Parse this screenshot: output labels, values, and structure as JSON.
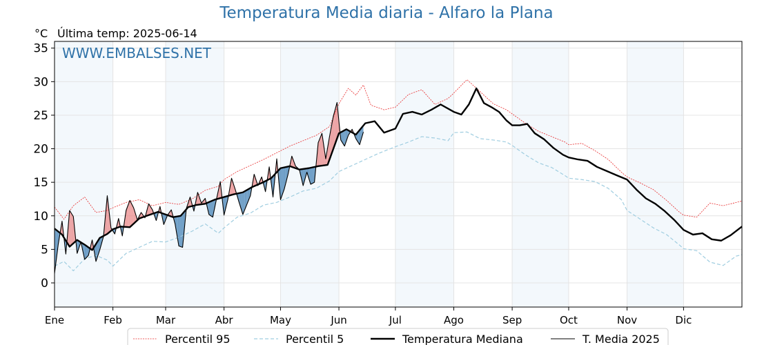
{
  "chart_data": {
    "type": "line",
    "title": "Temperatura Media diaria - Alfaro la Plana",
    "unit_label": "°C",
    "last_temp_label": "Última temp: 2025-06-14",
    "watermark": "WWW.EMBALSES.NET",
    "xlabel": "",
    "ylabel": "",
    "ylim": [
      -3.6,
      36.0
    ],
    "yticks": [
      0,
      5,
      10,
      15,
      20,
      25,
      30,
      35
    ],
    "xlim": [
      0,
      365
    ],
    "x_is_day_of_year": true,
    "months": [
      {
        "label": "Ene",
        "day": 0
      },
      {
        "label": "Feb",
        "day": 31
      },
      {
        "label": "Mar",
        "day": 59
      },
      {
        "label": "Abr",
        "day": 90
      },
      {
        "label": "May",
        "day": 120
      },
      {
        "label": "Jun",
        "day": 151
      },
      {
        "label": "Jul",
        "day": 181
      },
      {
        "label": "Ago",
        "day": 212
      },
      {
        "label": "Sep",
        "day": 243
      },
      {
        "label": "Oct",
        "day": 273
      },
      {
        "label": "Nov",
        "day": 304
      },
      {
        "label": "Dic",
        "day": 334
      }
    ],
    "grid": true,
    "legend_position": "bottom",
    "series": [
      {
        "name": "Percentil 95",
        "color": "#e8292a",
        "style": "dotted",
        "x": [
          0,
          5,
          10,
          16,
          22,
          28,
          31,
          38,
          45,
          52,
          59,
          66,
          73,
          80,
          87,
          90,
          97,
          104,
          111,
          118,
          125,
          132,
          139,
          146,
          151,
          156,
          160,
          164,
          168,
          175,
          181,
          188,
          195,
          202,
          209,
          212,
          219,
          226,
          233,
          240,
          243,
          250,
          257,
          264,
          271,
          273,
          280,
          287,
          294,
          301,
          304,
          311,
          318,
          325,
          332,
          334,
          341,
          348,
          355,
          362,
          365
        ],
        "values": [
          11.3,
          9.5,
          11.5,
          12.8,
          10.5,
          10.8,
          11.2,
          12.0,
          12.4,
          11.5,
          12.0,
          11.7,
          12.5,
          13.8,
          14.4,
          15.4,
          16.6,
          17.5,
          18.4,
          19.4,
          20.4,
          21.2,
          22.0,
          23.3,
          26.7,
          29.0,
          28.0,
          29.5,
          26.5,
          25.8,
          26.2,
          28.1,
          28.8,
          26.6,
          27.5,
          28.3,
          30.3,
          28.5,
          26.7,
          25.8,
          25.2,
          23.8,
          22.6,
          21.8,
          21.0,
          20.6,
          20.8,
          19.7,
          18.4,
          16.5,
          15.8,
          14.9,
          13.9,
          12.3,
          10.5,
          10.1,
          9.8,
          11.9,
          11.5,
          12.0,
          12.2
        ]
      },
      {
        "name": "Percentil 5",
        "color": "#9fcde0",
        "style": "dashed",
        "x": [
          0,
          5,
          10,
          16,
          22,
          28,
          31,
          38,
          45,
          52,
          59,
          66,
          73,
          80,
          87,
          90,
          97,
          104,
          111,
          118,
          125,
          132,
          139,
          146,
          151,
          158,
          165,
          172,
          181,
          188,
          195,
          202,
          209,
          212,
          219,
          226,
          233,
          240,
          243,
          250,
          257,
          264,
          271,
          273,
          280,
          287,
          294,
          301,
          304,
          311,
          318,
          325,
          332,
          334,
          341,
          348,
          355,
          362,
          365
        ],
        "values": [
          2.5,
          3.2,
          1.8,
          3.6,
          4.1,
          3.4,
          2.5,
          4.4,
          5.3,
          6.2,
          6.1,
          6.8,
          7.7,
          8.8,
          7.4,
          8.2,
          9.8,
          10.4,
          11.6,
          12.0,
          12.8,
          13.7,
          14.1,
          15.2,
          16.6,
          17.5,
          18.4,
          19.3,
          20.3,
          21.0,
          21.8,
          21.6,
          21.2,
          22.4,
          22.5,
          21.5,
          21.3,
          21.0,
          20.5,
          19.1,
          17.9,
          17.2,
          16.0,
          15.6,
          15.4,
          15.1,
          14.1,
          12.4,
          10.8,
          9.5,
          8.2,
          7.2,
          5.6,
          5.1,
          4.8,
          3.1,
          2.6,
          4.0,
          4.2
        ]
      },
      {
        "name": "Temperatura Mediana",
        "color": "#000000",
        "style": "solid-thick",
        "x": [
          0,
          4,
          8,
          12,
          16,
          20,
          24,
          28,
          31,
          35,
          40,
          45,
          50,
          55,
          59,
          63,
          67,
          71,
          75,
          80,
          85,
          90,
          95,
          100,
          105,
          110,
          115,
          120,
          125,
          130,
          135,
          140,
          145,
          151,
          155,
          160,
          165,
          170,
          175,
          181,
          185,
          190,
          195,
          200,
          205,
          212,
          216,
          220,
          224,
          228,
          232,
          236,
          240,
          243,
          247,
          251,
          255,
          260,
          265,
          270,
          273,
          278,
          283,
          288,
          293,
          298,
          304,
          309,
          314,
          319,
          324,
          329,
          334,
          339,
          344,
          349,
          354,
          359,
          365
        ],
        "values": [
          8.1,
          7.2,
          5.4,
          6.4,
          5.7,
          4.9,
          6.7,
          7.3,
          8.0,
          8.4,
          8.3,
          9.6,
          10.1,
          10.6,
          10.2,
          9.8,
          10.0,
          11.3,
          11.6,
          11.8,
          12.4,
          12.8,
          13.2,
          13.5,
          14.3,
          14.9,
          15.6,
          17.1,
          17.4,
          16.9,
          17.1,
          17.4,
          17.6,
          22.3,
          22.9,
          22.1,
          23.8,
          24.1,
          22.4,
          23.0,
          25.2,
          25.5,
          25.1,
          25.8,
          26.6,
          25.5,
          25.1,
          26.6,
          29.0,
          26.8,
          26.2,
          25.5,
          24.2,
          23.5,
          23.5,
          23.7,
          22.3,
          21.4,
          20.1,
          19.1,
          18.7,
          18.4,
          18.2,
          17.3,
          16.7,
          16.1,
          15.4,
          13.9,
          12.6,
          11.8,
          10.7,
          9.4,
          7.9,
          7.2,
          7.4,
          6.5,
          6.3,
          7.1,
          8.4
        ]
      },
      {
        "name": "T. Media 2025",
        "color": "#000000",
        "style": "solid-thin",
        "x": [
          0,
          2,
          4,
          6,
          8,
          10,
          12,
          14,
          16,
          18,
          20,
          22,
          24,
          26,
          28,
          30,
          32,
          34,
          36,
          38,
          40,
          42,
          44,
          46,
          48,
          50,
          52,
          54,
          56,
          58,
          60,
          62,
          64,
          66,
          68,
          70,
          72,
          74,
          76,
          78,
          80,
          82,
          84,
          86,
          88,
          90,
          92,
          94,
          96,
          98,
          100,
          102,
          104,
          106,
          108,
          110,
          112,
          114,
          116,
          118,
          120,
          122,
          124,
          126,
          128,
          130,
          132,
          134,
          136,
          138,
          140,
          142,
          144,
          146,
          148,
          150,
          152,
          154,
          156,
          158,
          160,
          162,
          164
        ],
        "values": [
          1.4,
          5.8,
          9.2,
          4.3,
          10.8,
          9.9,
          4.4,
          6.1,
          3.5,
          4.1,
          6.4,
          3.2,
          4.9,
          6.9,
          13.0,
          8.2,
          7.3,
          9.6,
          7.0,
          10.8,
          12.3,
          11.2,
          9.4,
          10.5,
          9.7,
          11.8,
          10.9,
          9.3,
          11.4,
          8.7,
          10.1,
          10.9,
          8.8,
          5.5,
          5.3,
          11.1,
          12.8,
          10.7,
          13.5,
          11.9,
          12.6,
          10.2,
          9.8,
          12.5,
          15.1,
          10.1,
          12.4,
          15.6,
          13.9,
          12.0,
          10.2,
          11.6,
          13.0,
          16.2,
          14.5,
          15.8,
          13.6,
          17.3,
          12.8,
          18.5,
          12.4,
          14.0,
          16.2,
          18.9,
          17.4,
          16.9,
          14.5,
          16.5,
          14.7,
          15.0,
          20.9,
          22.3,
          18.5,
          21.8,
          24.8,
          26.9,
          21.3,
          20.4,
          22.0,
          22.9,
          21.5,
          20.6,
          22.5
        ]
      }
    ],
    "fill_above_color": "#ea8585",
    "fill_below_color": "#4a86b8"
  }
}
